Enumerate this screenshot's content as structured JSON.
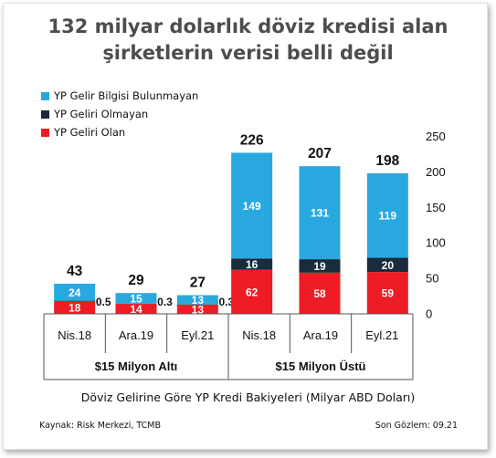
{
  "title_line1": "132 milyar dolarlık döviz kredisi alan",
  "title_line2": "şirketlerin verisi belli değil",
  "source": "Kaynak: Risk Merkezi, TCMB",
  "last_obs": "Son Gözlem: 09.21",
  "colors": {
    "blue": "#29a8e0",
    "navy": "#1a2b3c",
    "red": "#ee1c24"
  },
  "chart_data": {
    "type": "bar",
    "stacked": true,
    "categories": [
      "Nis.18",
      "Ara.19",
      "Eyl.21",
      "Nis.18",
      "Ara.19",
      "Eyl.21"
    ],
    "groups": [
      {
        "label": "$15 Milyon Altı",
        "categories": [
          0,
          1,
          2
        ]
      },
      {
        "label": "$15 Milyon Üstü",
        "categories": [
          3,
          4,
          5
        ]
      }
    ],
    "series": [
      {
        "name": "YP Geliri Olan",
        "color": "#ee1c24",
        "values": [
          18,
          14,
          13,
          62,
          58,
          59
        ]
      },
      {
        "name": "YP Geliri Olmayan",
        "color": "#1a2b3c",
        "values": [
          0.5,
          0.3,
          0.3,
          16,
          19,
          20
        ]
      },
      {
        "name": "YP Gelir Bilgisi Bulunmayan",
        "color": "#29a8e0",
        "values": [
          24,
          15,
          13,
          149,
          131,
          119
        ]
      }
    ],
    "totals": [
      43,
      29,
      27,
      226,
      207,
      198
    ],
    "value_labels": [
      [
        "18",
        "14",
        "13",
        "62",
        "58",
        "59"
      ],
      [
        "0.5",
        "0.3",
        "0.3",
        "16",
        "19",
        "20"
      ],
      [
        "24",
        "15",
        "13",
        "149",
        "131",
        "119"
      ]
    ],
    "legend_order": [
      "YP Gelir Bilgisi Bulunmayan",
      "YP Geliri Olmayan",
      "YP Geliri Olan"
    ],
    "xlabel": "Döviz Gelirine Göre YP Kredi Bakiyeleri (Milyar ABD Doları)",
    "ylabel": "",
    "ylim": [
      0,
      250
    ],
    "yticks": [
      0,
      50,
      100,
      150,
      200,
      250
    ],
    "y_axis_side": "right",
    "legend_position": "top-left"
  }
}
